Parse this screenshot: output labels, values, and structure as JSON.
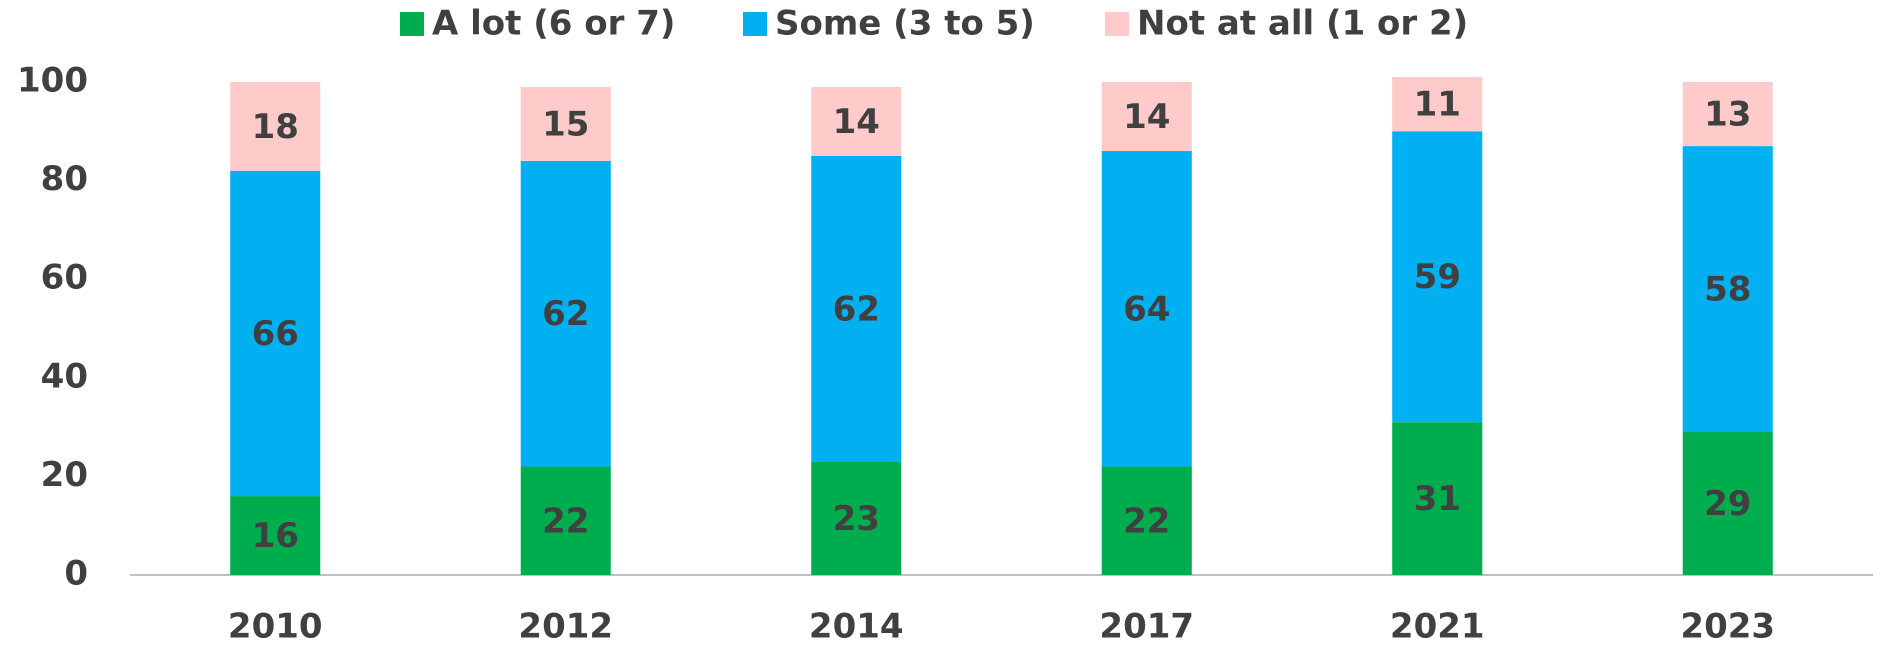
{
  "chart_data": {
    "type": "stacked_bar",
    "categories": [
      "2010",
      "2012",
      "2014",
      "2017",
      "2021",
      "2023"
    ],
    "series": [
      {
        "name": "A lot (6 or 7)",
        "color": "#00ad4e",
        "values": [
          16,
          22,
          23,
          22,
          31,
          29
        ]
      },
      {
        "name": "Some (3 to 5)",
        "color": "#00b0f0",
        "values": [
          66,
          62,
          62,
          64,
          59,
          58
        ]
      },
      {
        "name": "Not at all (1 or 2)",
        "color": "#ffcaca",
        "values": [
          18,
          15,
          14,
          14,
          11,
          13
        ]
      }
    ],
    "ylim": [
      0,
      100
    ],
    "yticks": [
      0,
      20,
      40,
      60,
      80,
      100
    ],
    "grid": false,
    "legend": "top"
  }
}
